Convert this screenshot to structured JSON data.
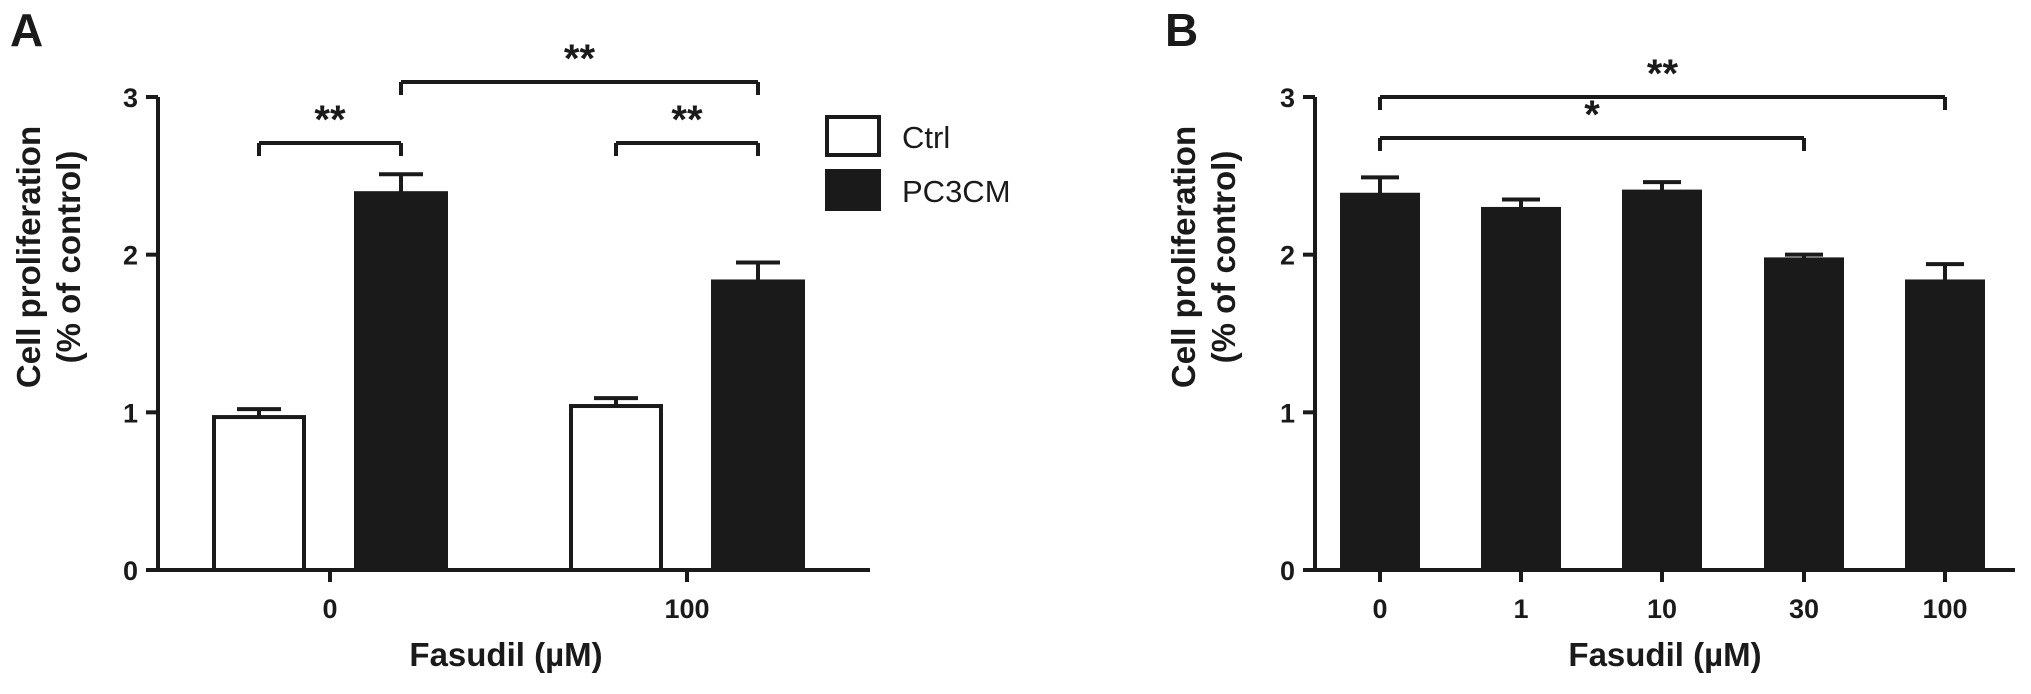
{
  "chart_data": [
    {
      "panel": "A",
      "type": "bar",
      "xlabel": "Fasudil (µM)",
      "ylabel": [
        "Cell proliferation",
        "(%  of control)"
      ],
      "ylim": [
        0,
        3
      ],
      "yticks": [
        "0",
        "1",
        "2",
        "3"
      ],
      "categories": [
        "0",
        "100"
      ],
      "legend_position": "top-right",
      "series": [
        {
          "name": "Ctrl",
          "color": "#ffffff",
          "values": [
            0.97,
            1.04
          ],
          "errors": [
            0.05,
            0.05
          ]
        },
        {
          "name": "PC3CM",
          "color": "#1a1a1a",
          "values": [
            2.39,
            1.83
          ],
          "errors": [
            0.12,
            0.12
          ]
        }
      ],
      "significance": [
        {
          "label": "**",
          "from": [
            "0",
            "Ctrl"
          ],
          "to": [
            "0",
            "PC3CM"
          ]
        },
        {
          "label": "**",
          "from": [
            "0",
            "PC3CM"
          ],
          "to": [
            "100",
            "PC3CM"
          ]
        },
        {
          "label": "**",
          "from": [
            "100",
            "Ctrl"
          ],
          "to": [
            "100",
            "PC3CM"
          ]
        }
      ]
    },
    {
      "panel": "B",
      "type": "bar",
      "xlabel": "Fasudil (µM)",
      "ylabel": [
        "Cell proliferation",
        "(%  of control)"
      ],
      "ylim": [
        0,
        3
      ],
      "yticks": [
        "0",
        "1",
        "2",
        "3"
      ],
      "categories": [
        "0",
        "1",
        "10",
        "30",
        "100"
      ],
      "series": [
        {
          "color": "#1a1a1a",
          "values": [
            2.38,
            2.29,
            2.4,
            1.97,
            1.83
          ],
          "errors": [
            0.11,
            0.06,
            0.06,
            0.03,
            0.11
          ]
        }
      ],
      "significance": [
        {
          "label": "*",
          "from": "0",
          "to": "30"
        },
        {
          "label": "**",
          "from": "0",
          "to": "100"
        }
      ]
    }
  ]
}
